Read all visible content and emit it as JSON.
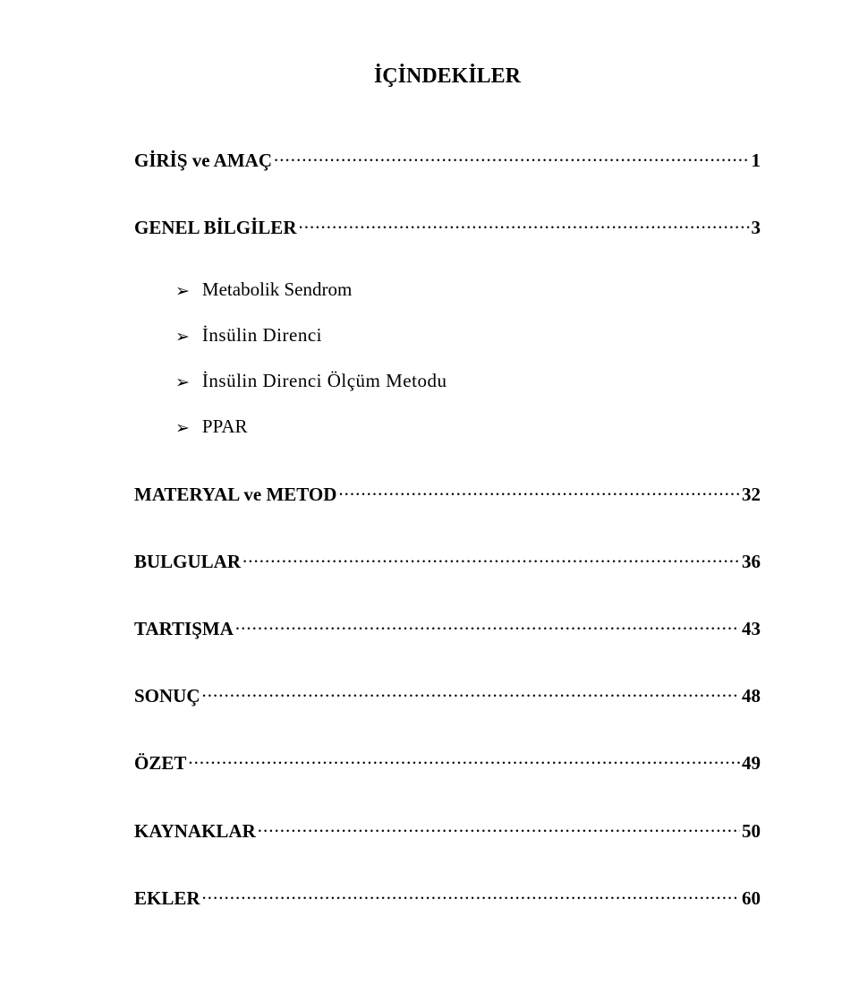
{
  "title": "İÇİNDEKİLER",
  "text_color": "#000000",
  "background_color": "#ffffff",
  "font_family": "Times New Roman",
  "title_fontsize": 24,
  "line_fontsize": 21,
  "entries": [
    {
      "label": "GİRİŞ ve AMAÇ",
      "page": "1"
    },
    {
      "label": "GENEL BİLGİLER",
      "page": "3"
    },
    {
      "label": "MATERYAL ve METOD",
      "page": "32"
    },
    {
      "label": "BULGULAR",
      "page": "36"
    },
    {
      "label": "TARTIŞMA",
      "page": " 43"
    },
    {
      "label": "SONUÇ",
      "page": "48"
    },
    {
      "label": "ÖZET",
      "page": "49"
    },
    {
      "label": "KAYNAKLAR",
      "page": "50"
    },
    {
      "label": "EKLER",
      "page": "60"
    }
  ],
  "sub_items": [
    "Metabolik Sendrom",
    "İnsülin Direnci",
    "İnsülin Direnci Ölçüm Metodu",
    "PPAR"
  ],
  "bullet_glyph": "➢"
}
